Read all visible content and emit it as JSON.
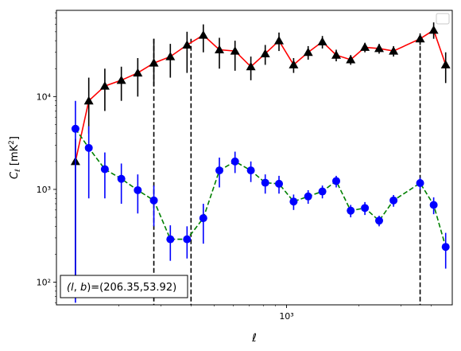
{
  "chart_data": {
    "type": "scatter",
    "xlabel": "ℓ",
    "ylabel": "C_ℓ  [mK²]",
    "xscale": "log",
    "yscale": "log",
    "xlim": [
      110,
      4900
    ],
    "ylim": [
      57,
      85000
    ],
    "x_ticks": [
      {
        "value": 1000,
        "label": "10³"
      }
    ],
    "y_ticks": [
      {
        "value": 100,
        "label": "10²"
      },
      {
        "value": 1000,
        "label": "10³"
      },
      {
        "value": 10000,
        "label": "10⁴"
      }
    ],
    "legend": "top-right",
    "grid": false,
    "annotation": "(l, b)=(206.35,53.92)",
    "vlines": [
      280,
      400,
      3600
    ],
    "series": [
      {
        "marker": "triangle",
        "marker_color": "#000000",
        "line_color": "#ff0000",
        "line_style": "solid",
        "errorbar_color": "#000000",
        "points": [
          {
            "x": 132,
            "y": 2000,
            "lo": 100,
            "hi": 3500
          },
          {
            "x": 150,
            "y": 9000,
            "lo": 4000,
            "hi": 16000
          },
          {
            "x": 175,
            "y": 13000,
            "lo": 7000,
            "hi": 20000
          },
          {
            "x": 205,
            "y": 15000,
            "lo": 9000,
            "hi": 21000
          },
          {
            "x": 240,
            "y": 18000,
            "lo": 10000,
            "hi": 26000
          },
          {
            "x": 280,
            "y": 23000,
            "lo": 13000,
            "hi": 42000
          },
          {
            "x": 328,
            "y": 27000,
            "lo": 16000,
            "hi": 37000
          },
          {
            "x": 385,
            "y": 36000,
            "lo": 18000,
            "hi": 50000
          },
          {
            "x": 450,
            "y": 46000,
            "lo": 30000,
            "hi": 60000
          },
          {
            "x": 525,
            "y": 32000,
            "lo": 20000,
            "hi": 43000
          },
          {
            "x": 610,
            "y": 31000,
            "lo": 19000,
            "hi": 40000
          },
          {
            "x": 710,
            "y": 21000,
            "lo": 15000,
            "hi": 27000
          },
          {
            "x": 815,
            "y": 29000,
            "lo": 22000,
            "hi": 36000
          },
          {
            "x": 930,
            "y": 40000,
            "lo": 31000,
            "hi": 49000
          },
          {
            "x": 1070,
            "y": 22000,
            "lo": 18000,
            "hi": 26000
          },
          {
            "x": 1230,
            "y": 30000,
            "lo": 25000,
            "hi": 35000
          },
          {
            "x": 1410,
            "y": 39000,
            "lo": 33000,
            "hi": 45000
          },
          {
            "x": 1610,
            "y": 28000,
            "lo": 24000,
            "hi": 32000
          },
          {
            "x": 1850,
            "y": 25000,
            "lo": 22000,
            "hi": 28000
          },
          {
            "x": 2120,
            "y": 34000,
            "lo": 30000,
            "hi": 38000
          },
          {
            "x": 2430,
            "y": 33000,
            "lo": 29000,
            "hi": 37000
          },
          {
            "x": 2790,
            "y": 31000,
            "lo": 27000,
            "hi": 35000
          },
          {
            "x": 3600,
            "y": 42000,
            "lo": 36000,
            "hi": 48000
          },
          {
            "x": 4100,
            "y": 52000,
            "lo": 42000,
            "hi": 63000
          },
          {
            "x": 4600,
            "y": 22000,
            "lo": 14000,
            "hi": 30000
          }
        ]
      },
      {
        "marker": "circle",
        "marker_color": "#0000ff",
        "line_color": "#008000",
        "line_style": "dashed",
        "errorbar_color": "#0000ff",
        "points": [
          {
            "x": 132,
            "y": 4500,
            "lo": 60,
            "hi": 9000
          },
          {
            "x": 150,
            "y": 2800,
            "lo": 800,
            "hi": 4800
          },
          {
            "x": 175,
            "y": 1650,
            "lo": 800,
            "hi": 2500
          },
          {
            "x": 205,
            "y": 1300,
            "lo": 700,
            "hi": 1900
          },
          {
            "x": 240,
            "y": 980,
            "lo": 550,
            "hi": 1450
          },
          {
            "x": 280,
            "y": 760,
            "lo": 400,
            "hi": 1100
          },
          {
            "x": 328,
            "y": 290,
            "lo": 170,
            "hi": 410
          },
          {
            "x": 385,
            "y": 290,
            "lo": 180,
            "hi": 400
          },
          {
            "x": 450,
            "y": 490,
            "lo": 260,
            "hi": 700
          },
          {
            "x": 525,
            "y": 1600,
            "lo": 1050,
            "hi": 2200
          },
          {
            "x": 610,
            "y": 2000,
            "lo": 1500,
            "hi": 2550
          },
          {
            "x": 710,
            "y": 1600,
            "lo": 1200,
            "hi": 2000
          },
          {
            "x": 815,
            "y": 1180,
            "lo": 900,
            "hi": 1450
          },
          {
            "x": 930,
            "y": 1150,
            "lo": 900,
            "hi": 1400
          },
          {
            "x": 1070,
            "y": 740,
            "lo": 600,
            "hi": 880
          },
          {
            "x": 1230,
            "y": 840,
            "lo": 700,
            "hi": 980
          },
          {
            "x": 1410,
            "y": 950,
            "lo": 800,
            "hi": 1100
          },
          {
            "x": 1610,
            "y": 1230,
            "lo": 1050,
            "hi": 1400
          },
          {
            "x": 1850,
            "y": 590,
            "lo": 500,
            "hi": 680
          },
          {
            "x": 2120,
            "y": 630,
            "lo": 530,
            "hi": 730
          },
          {
            "x": 2430,
            "y": 460,
            "lo": 400,
            "hi": 520
          },
          {
            "x": 2790,
            "y": 760,
            "lo": 650,
            "hi": 870
          },
          {
            "x": 3600,
            "y": 1170,
            "lo": 1000,
            "hi": 1340
          },
          {
            "x": 4100,
            "y": 680,
            "lo": 540,
            "hi": 820
          },
          {
            "x": 4600,
            "y": 240,
            "lo": 140,
            "hi": 340
          }
        ]
      }
    ]
  }
}
